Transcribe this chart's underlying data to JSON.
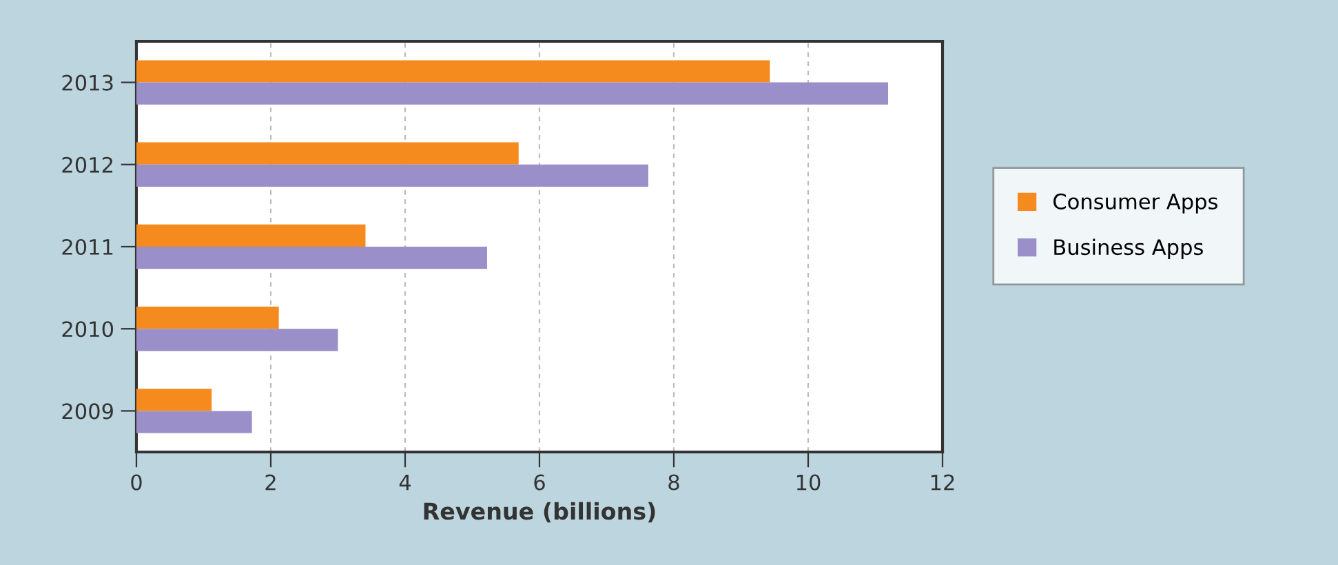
{
  "chart_data": {
    "type": "bar",
    "orientation": "horizontal",
    "xlabel": "Revenue (billions)",
    "categories": [
      "2013",
      "2012",
      "2011",
      "2010",
      "2009"
    ],
    "series": [
      {
        "name": "Consumer Apps",
        "color": "#f58a1f",
        "values": [
          9.43,
          5.69,
          3.41,
          2.12,
          1.12
        ]
      },
      {
        "name": "Business Apps",
        "color": "#9b8fc9",
        "values": [
          11.19,
          7.62,
          5.22,
          3.0,
          1.72
        ]
      }
    ],
    "xlim": [
      0,
      12
    ],
    "xticks": [
      0,
      2,
      4,
      6,
      8,
      10,
      12
    ],
    "grid": "x",
    "legend": "right"
  }
}
